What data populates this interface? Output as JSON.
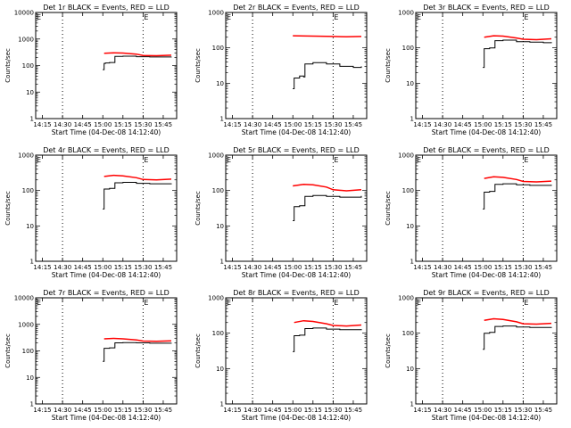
{
  "chart_data": [
    {
      "type": "line",
      "title": "Det 1r BLACK = Events, RED = LLD",
      "xlabel": "Start Time (04-Dec-08 14:12:40)",
      "ylabel": "Counts/sec",
      "x_tick_labels": [
        "14:15",
        "14:30",
        "14:45",
        "15:00",
        "15:15",
        "15:30",
        "15:45"
      ],
      "y_tick_labels": [
        "1",
        "10",
        "100",
        "1000",
        "10000"
      ],
      "ylim": [
        1,
        10000
      ],
      "y_scale": "log",
      "vertical_markers": [
        "14:30",
        "15:30"
      ],
      "marker_label": "E",
      "series": [
        {
          "name": "",
          "color": "#000000",
          "points": [
            [
              "15:00",
              70
            ],
            [
              "15:01",
              120
            ],
            [
              "15:02",
              125
            ],
            [
              "15:05",
              130
            ],
            [
              "15:08",
              130
            ],
            [
              "15:09",
              220
            ],
            [
              "15:15",
              225
            ],
            [
              "15:25",
              215
            ],
            [
              "15:35",
              210
            ],
            [
              "15:45",
              210
            ],
            [
              "15:51",
              215
            ]
          ]
        },
        {
          "name": "",
          "color": "#ff0000",
          "points": [
            [
              "15:01",
              290
            ],
            [
              "15:08",
              300
            ],
            [
              "15:15",
              295
            ],
            [
              "15:25",
              270
            ],
            [
              "15:30",
              240
            ],
            [
              "15:40",
              235
            ],
            [
              "15:51",
              245
            ]
          ]
        }
      ]
    },
    {
      "type": "line",
      "title": "Det 2r BLACK = Events, RED = LLD",
      "xlabel": "Start Time (04-Dec-08 14:12:40)",
      "ylabel": "Counts/sec",
      "x_tick_labels": [
        "14:15",
        "14:30",
        "14:45",
        "15:00",
        "15:15",
        "15:30",
        "15:45"
      ],
      "y_tick_labels": [
        "1",
        "10",
        "100",
        "1000"
      ],
      "ylim": [
        1,
        1000
      ],
      "y_scale": "log",
      "vertical_markers": [
        "14:30",
        "15:30"
      ],
      "marker_label": "E",
      "series": [
        {
          "name": "",
          "color": "#000000",
          "points": [
            [
              "15:00",
              7
            ],
            [
              "15:01",
              14
            ],
            [
              "15:05",
              16
            ],
            [
              "15:08",
              15
            ],
            [
              "15:09",
              35
            ],
            [
              "15:15",
              38
            ],
            [
              "15:25",
              35
            ],
            [
              "15:35",
              30
            ],
            [
              "15:45",
              28
            ],
            [
              "15:51",
              30
            ]
          ]
        },
        {
          "name": "",
          "color": "#ff0000",
          "points": [
            [
              "15:00",
              220
            ],
            [
              "15:15",
              215
            ],
            [
              "15:30",
              210
            ],
            [
              "15:40",
              205
            ],
            [
              "15:51",
              210
            ]
          ]
        }
      ]
    },
    {
      "type": "line",
      "title": "Det 3r BLACK = Events, RED = LLD",
      "xlabel": "Start Time (04-Dec-08 14:12:40)",
      "ylabel": "Counts/sec",
      "x_tick_labels": [
        "14:15",
        "14:30",
        "14:45",
        "15:00",
        "15:15",
        "15:30",
        "15:45"
      ],
      "y_tick_labels": [
        "1",
        "10",
        "100",
        "1000"
      ],
      "ylim": [
        1,
        1000
      ],
      "y_scale": "log",
      "vertical_markers": [
        "14:30",
        "15:30"
      ],
      "marker_label": "E",
      "series": [
        {
          "name": "",
          "color": "#000000",
          "points": [
            [
              "15:00",
              28
            ],
            [
              "15:01",
              95
            ],
            [
              "15:05",
              100
            ],
            [
              "15:08",
              100
            ],
            [
              "15:09",
              160
            ],
            [
              "15:15",
              165
            ],
            [
              "15:25",
              150
            ],
            [
              "15:35",
              145
            ],
            [
              "15:45",
              140
            ],
            [
              "15:51",
              145
            ]
          ]
        },
        {
          "name": "",
          "color": "#ff0000",
          "points": [
            [
              "15:01",
              200
            ],
            [
              "15:08",
              220
            ],
            [
              "15:15",
              215
            ],
            [
              "15:25",
              190
            ],
            [
              "15:30",
              175
            ],
            [
              "15:40",
              170
            ],
            [
              "15:51",
              180
            ]
          ]
        }
      ]
    },
    {
      "type": "line",
      "title": "Det 4r BLACK = Events, RED = LLD",
      "xlabel": "Start Time (04-Dec-08 14:12:40)",
      "ylabel": "Counts/sec",
      "x_tick_labels": [
        "14:15",
        "14:30",
        "14:45",
        "15:00",
        "15:15",
        "15:30",
        "15:45"
      ],
      "y_tick_labels": [
        "1",
        "10",
        "100",
        "1000"
      ],
      "ylim": [
        1,
        1000
      ],
      "y_scale": "log",
      "vertical_markers": [
        "14:30",
        "15:30"
      ],
      "marker_label": "E",
      "series": [
        {
          "name": "",
          "color": "#000000",
          "points": [
            [
              "15:00",
              30
            ],
            [
              "15:01",
              110
            ],
            [
              "15:05",
              115
            ],
            [
              "15:08",
              115
            ],
            [
              "15:09",
              165
            ],
            [
              "15:15",
              170
            ],
            [
              "15:25",
              160
            ],
            [
              "15:35",
              155
            ],
            [
              "15:45",
              155
            ],
            [
              "15:51",
              160
            ]
          ]
        },
        {
          "name": "",
          "color": "#ff0000",
          "points": [
            [
              "15:01",
              250
            ],
            [
              "15:08",
              270
            ],
            [
              "15:15",
              260
            ],
            [
              "15:25",
              230
            ],
            [
              "15:30",
              205
            ],
            [
              "15:40",
              200
            ],
            [
              "15:51",
              210
            ]
          ]
        }
      ]
    },
    {
      "type": "line",
      "title": "Det 5r BLACK = Events, RED = LLD",
      "xlabel": "Start Time (04-Dec-08 14:12:40)",
      "ylabel": "Counts/sec",
      "x_tick_labels": [
        "14:15",
        "14:30",
        "14:45",
        "15:00",
        "15:15",
        "15:30",
        "15:45"
      ],
      "y_tick_labels": [
        "1",
        "10",
        "100",
        "1000"
      ],
      "ylim": [
        1,
        1000
      ],
      "y_scale": "log",
      "vertical_markers": [
        "14:30",
        "15:30"
      ],
      "marker_label": "E",
      "series": [
        {
          "name": "",
          "color": "#000000",
          "points": [
            [
              "15:00",
              14
            ],
            [
              "15:01",
              35
            ],
            [
              "15:05",
              37
            ],
            [
              "15:08",
              37
            ],
            [
              "15:09",
              68
            ],
            [
              "15:15",
              72
            ],
            [
              "15:25",
              68
            ],
            [
              "15:35",
              65
            ],
            [
              "15:45",
              65
            ],
            [
              "15:51",
              70
            ]
          ]
        },
        {
          "name": "",
          "color": "#ff0000",
          "points": [
            [
              "15:00",
              135
            ],
            [
              "15:08",
              150
            ],
            [
              "15:15",
              145
            ],
            [
              "15:25",
              125
            ],
            [
              "15:30",
              105
            ],
            [
              "15:40",
              98
            ],
            [
              "15:51",
              105
            ]
          ]
        }
      ]
    },
    {
      "type": "line",
      "title": "Det 6r BLACK = Events, RED = LLD",
      "xlabel": "Start Time (04-Dec-08 14:12:40)",
      "ylabel": "Counts/sec",
      "x_tick_labels": [
        "14:15",
        "14:30",
        "14:45",
        "15:00",
        "15:15",
        "15:30",
        "15:45"
      ],
      "y_tick_labels": [
        "1",
        "10",
        "100",
        "1000"
      ],
      "ylim": [
        1,
        1000
      ],
      "y_scale": "log",
      "vertical_markers": [
        "14:30",
        "15:30"
      ],
      "marker_label": "E",
      "series": [
        {
          "name": "",
          "color": "#000000",
          "points": [
            [
              "15:00",
              30
            ],
            [
              "15:01",
              90
            ],
            [
              "15:05",
              95
            ],
            [
              "15:08",
              95
            ],
            [
              "15:09",
              150
            ],
            [
              "15:15",
              155
            ],
            [
              "15:25",
              145
            ],
            [
              "15:35",
              140
            ],
            [
              "15:45",
              140
            ],
            [
              "15:51",
              145
            ]
          ]
        },
        {
          "name": "",
          "color": "#ff0000",
          "points": [
            [
              "15:01",
              220
            ],
            [
              "15:08",
              245
            ],
            [
              "15:15",
              235
            ],
            [
              "15:25",
              205
            ],
            [
              "15:30",
              180
            ],
            [
              "15:40",
              175
            ],
            [
              "15:51",
              185
            ]
          ]
        }
      ]
    },
    {
      "type": "line",
      "title": "Det 7r BLACK = Events, RED = LLD",
      "xlabel": "Start Time (04-Dec-08 14:12:40)",
      "ylabel": "Counts/sec",
      "x_tick_labels": [
        "14:15",
        "14:30",
        "14:45",
        "15:00",
        "15:15",
        "15:30",
        "15:45"
      ],
      "y_tick_labels": [
        "1",
        "10",
        "100",
        "1000",
        "10000"
      ],
      "ylim": [
        1,
        10000
      ],
      "y_scale": "log",
      "vertical_markers": [
        "14:30",
        "15:30"
      ],
      "marker_label": "E",
      "series": [
        {
          "name": "",
          "color": "#000000",
          "points": [
            [
              "15:00",
              40
            ],
            [
              "15:01",
              125
            ],
            [
              "15:05",
              130
            ],
            [
              "15:08",
              130
            ],
            [
              "15:09",
              200
            ],
            [
              "15:15",
              205
            ],
            [
              "15:25",
              200
            ],
            [
              "15:35",
              195
            ],
            [
              "15:45",
              195
            ],
            [
              "15:51",
              200
            ]
          ]
        },
        {
          "name": "",
          "color": "#ff0000",
          "points": [
            [
              "15:01",
              285
            ],
            [
              "15:08",
              295
            ],
            [
              "15:15",
              285
            ],
            [
              "15:25",
              260
            ],
            [
              "15:30",
              235
            ],
            [
              "15:40",
              230
            ],
            [
              "15:51",
              240
            ]
          ]
        }
      ]
    },
    {
      "type": "line",
      "title": "Det 8r BLACK = Events, RED = LLD",
      "xlabel": "Start Time (04-Dec-08 14:12:40)",
      "ylabel": "Counts/sec",
      "x_tick_labels": [
        "14:15",
        "14:30",
        "14:45",
        "15:00",
        "15:15",
        "15:30",
        "15:45"
      ],
      "y_tick_labels": [
        "1",
        "10",
        "100",
        "1000"
      ],
      "ylim": [
        1,
        1000
      ],
      "y_scale": "log",
      "vertical_markers": [
        "14:30",
        "15:30"
      ],
      "marker_label": "E",
      "series": [
        {
          "name": "",
          "color": "#000000",
          "points": [
            [
              "15:00",
              30
            ],
            [
              "15:01",
              85
            ],
            [
              "15:05",
              88
            ],
            [
              "15:08",
              88
            ],
            [
              "15:09",
              135
            ],
            [
              "15:15",
              140
            ],
            [
              "15:25",
              130
            ],
            [
              "15:35",
              125
            ],
            [
              "15:45",
              125
            ],
            [
              "15:51",
              130
            ]
          ]
        },
        {
          "name": "",
          "color": "#ff0000",
          "points": [
            [
              "15:01",
              200
            ],
            [
              "15:08",
              225
            ],
            [
              "15:15",
              215
            ],
            [
              "15:25",
              185
            ],
            [
              "15:30",
              165
            ],
            [
              "15:40",
              160
            ],
            [
              "15:51",
              170
            ]
          ]
        }
      ]
    },
    {
      "type": "line",
      "title": "Det 9r BLACK = Events, RED = LLD",
      "xlabel": "Start Time (04-Dec-08 14:12:40)",
      "ylabel": "Counts/sec",
      "x_tick_labels": [
        "14:15",
        "14:30",
        "14:45",
        "15:00",
        "15:15",
        "15:30",
        "15:45"
      ],
      "y_tick_labels": [
        "1",
        "10",
        "100",
        "1000"
      ],
      "ylim": [
        1,
        1000
      ],
      "y_scale": "log",
      "vertical_markers": [
        "14:30",
        "15:30"
      ],
      "marker_label": "E",
      "series": [
        {
          "name": "",
          "color": "#000000",
          "points": [
            [
              "15:00",
              35
            ],
            [
              "15:01",
              100
            ],
            [
              "15:05",
              105
            ],
            [
              "15:08",
              105
            ],
            [
              "15:09",
              155
            ],
            [
              "15:15",
              160
            ],
            [
              "15:25",
              150
            ],
            [
              "15:35",
              145
            ],
            [
              "15:45",
              145
            ],
            [
              "15:51",
              150
            ]
          ]
        },
        {
          "name": "",
          "color": "#ff0000",
          "points": [
            [
              "15:01",
              230
            ],
            [
              "15:08",
              255
            ],
            [
              "15:15",
              245
            ],
            [
              "15:25",
              210
            ],
            [
              "15:30",
              185
            ],
            [
              "15:40",
              180
            ],
            [
              "15:51",
              190
            ]
          ]
        }
      ]
    }
  ]
}
